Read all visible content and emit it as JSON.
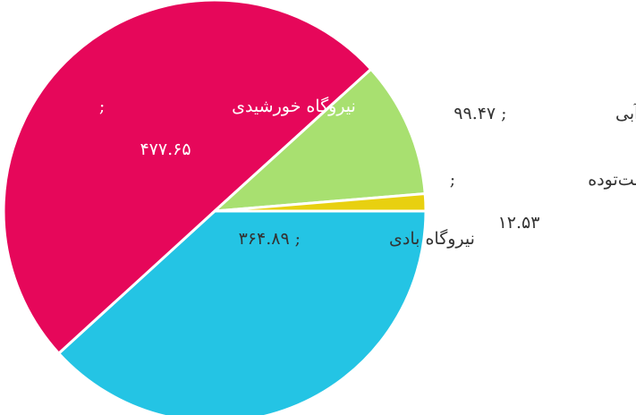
{
  "chart_data": {
    "type": "pie",
    "categories": [
      "نیروگاه بادی",
      "نیروگاه خورشیدی",
      "نیروگاه برق‌آبی",
      "نیروگاه زیست‌توده"
    ],
    "separator": ";",
    "values": [
      364.89,
      477.65,
      99.47,
      12.53
    ],
    "value_labels": [
      "۳۶۴.۸۹",
      "۴۷۷.۶۵",
      "۹۹.۴۷",
      "۱۲.۵۳"
    ],
    "colors": [
      "#24c4e4",
      "#e6075a",
      "#a8e070",
      "#e8d010"
    ]
  }
}
